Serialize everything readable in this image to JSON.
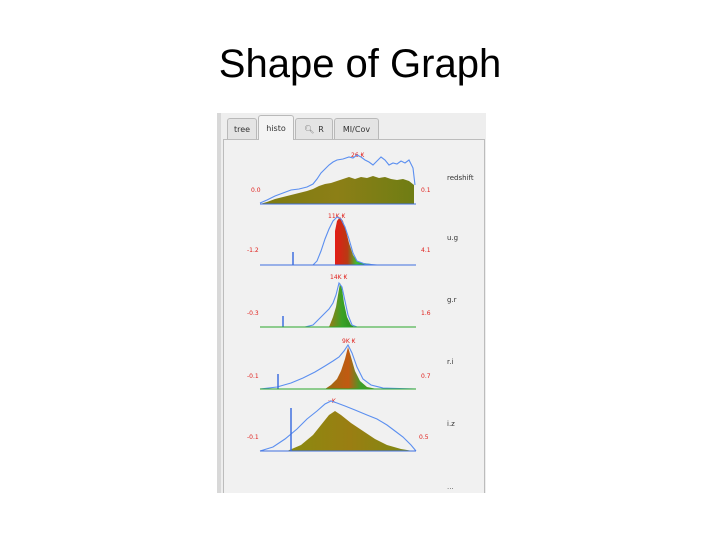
{
  "slide": {
    "title": "Shape of Graph"
  },
  "tabs": [
    {
      "label": "tree",
      "active": false
    },
    {
      "label": "histo",
      "active": true
    },
    {
      "label": "R",
      "icon": "search-icon",
      "active": false
    },
    {
      "label": "MI/Cov",
      "active": false
    }
  ],
  "colors": {
    "outline_line": "#5b8ff0",
    "fill_olive": "#8a8a10",
    "fill_red": "#e01818",
    "fill_green": "#2aa82a",
    "label_red": "#e0201c",
    "axis_blue": "#3f6fe0"
  },
  "histograms": [
    {
      "name": "redshift",
      "min_label": "0.0",
      "max_label": "0.1",
      "peak_label": "26 ₭",
      "style": "olive-rough"
    },
    {
      "name": "u.g",
      "min_label": "-1.2",
      "max_label": "4.1",
      "peak_label": "11K ₭",
      "style": "red-green-spike"
    },
    {
      "name": "g.r",
      "min_label": "-0.3",
      "max_label": "1.6",
      "peak_label": "14K ₭",
      "style": "green-narrow"
    },
    {
      "name": "r.i",
      "min_label": "-0.1",
      "max_label": "0.7",
      "peak_label": "9K ₭",
      "style": "orange-peak"
    },
    {
      "name": "i.z",
      "min_label": "-0.1",
      "max_label": "0.5",
      "peak_label": "··K",
      "style": "olive-triangle"
    }
  ],
  "trailing_label": "..."
}
